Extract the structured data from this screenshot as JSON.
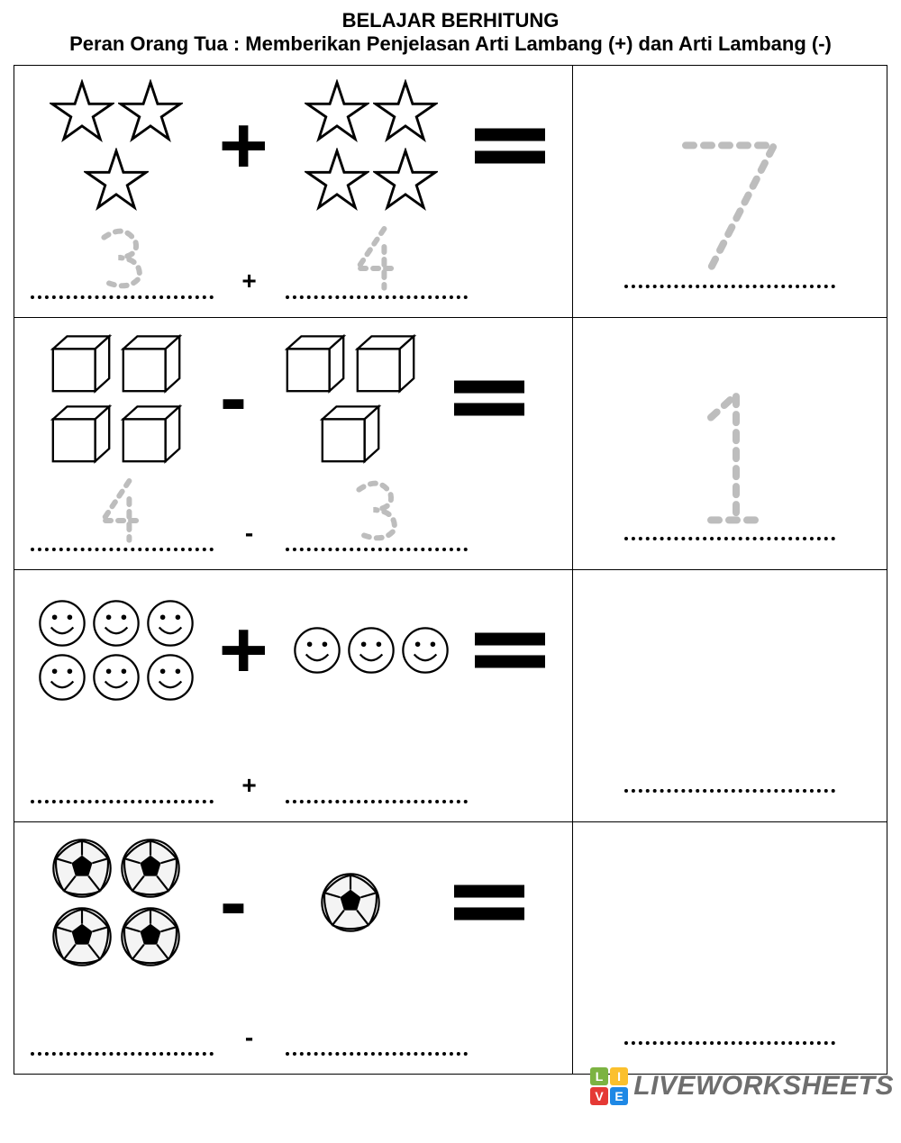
{
  "header": {
    "title": "BELAJAR BERHITUNG",
    "subtitle": "Peran Orang Tua : Memberikan Penjelasan Arti Lambang (+) dan Arti Lambang (-)"
  },
  "colors": {
    "text": "#000000",
    "trace": "#bdbdbd",
    "border": "#000000",
    "background": "#ffffff",
    "watermark": "#6e6e6e",
    "badge": [
      "#7cb342",
      "#fbc02d",
      "#e53935",
      "#1e88e5"
    ]
  },
  "rows": [
    {
      "left_icon": "star",
      "left_count": 3,
      "op": "+",
      "right_icon": "star",
      "right_count": 4,
      "trace_left": "3",
      "trace_right": "4",
      "answer_trace": "7"
    },
    {
      "left_icon": "cube",
      "left_count": 4,
      "op": "-",
      "right_icon": "cube",
      "right_count": 3,
      "trace_left": "4",
      "trace_right": "3",
      "answer_trace": "1"
    },
    {
      "left_icon": "smile",
      "left_count": 6,
      "op": "+",
      "right_icon": "smile",
      "right_count": 3,
      "trace_left": "",
      "trace_right": "",
      "answer_trace": ""
    },
    {
      "left_icon": "ball",
      "left_count": 4,
      "op": "-",
      "right_icon": "ball",
      "right_count": 1,
      "trace_left": "",
      "trace_right": "",
      "answer_trace": ""
    }
  ],
  "watermark": {
    "text": "LIVEWORKSHEETS",
    "badge_letters": [
      "L",
      "I",
      "V",
      "E"
    ]
  }
}
